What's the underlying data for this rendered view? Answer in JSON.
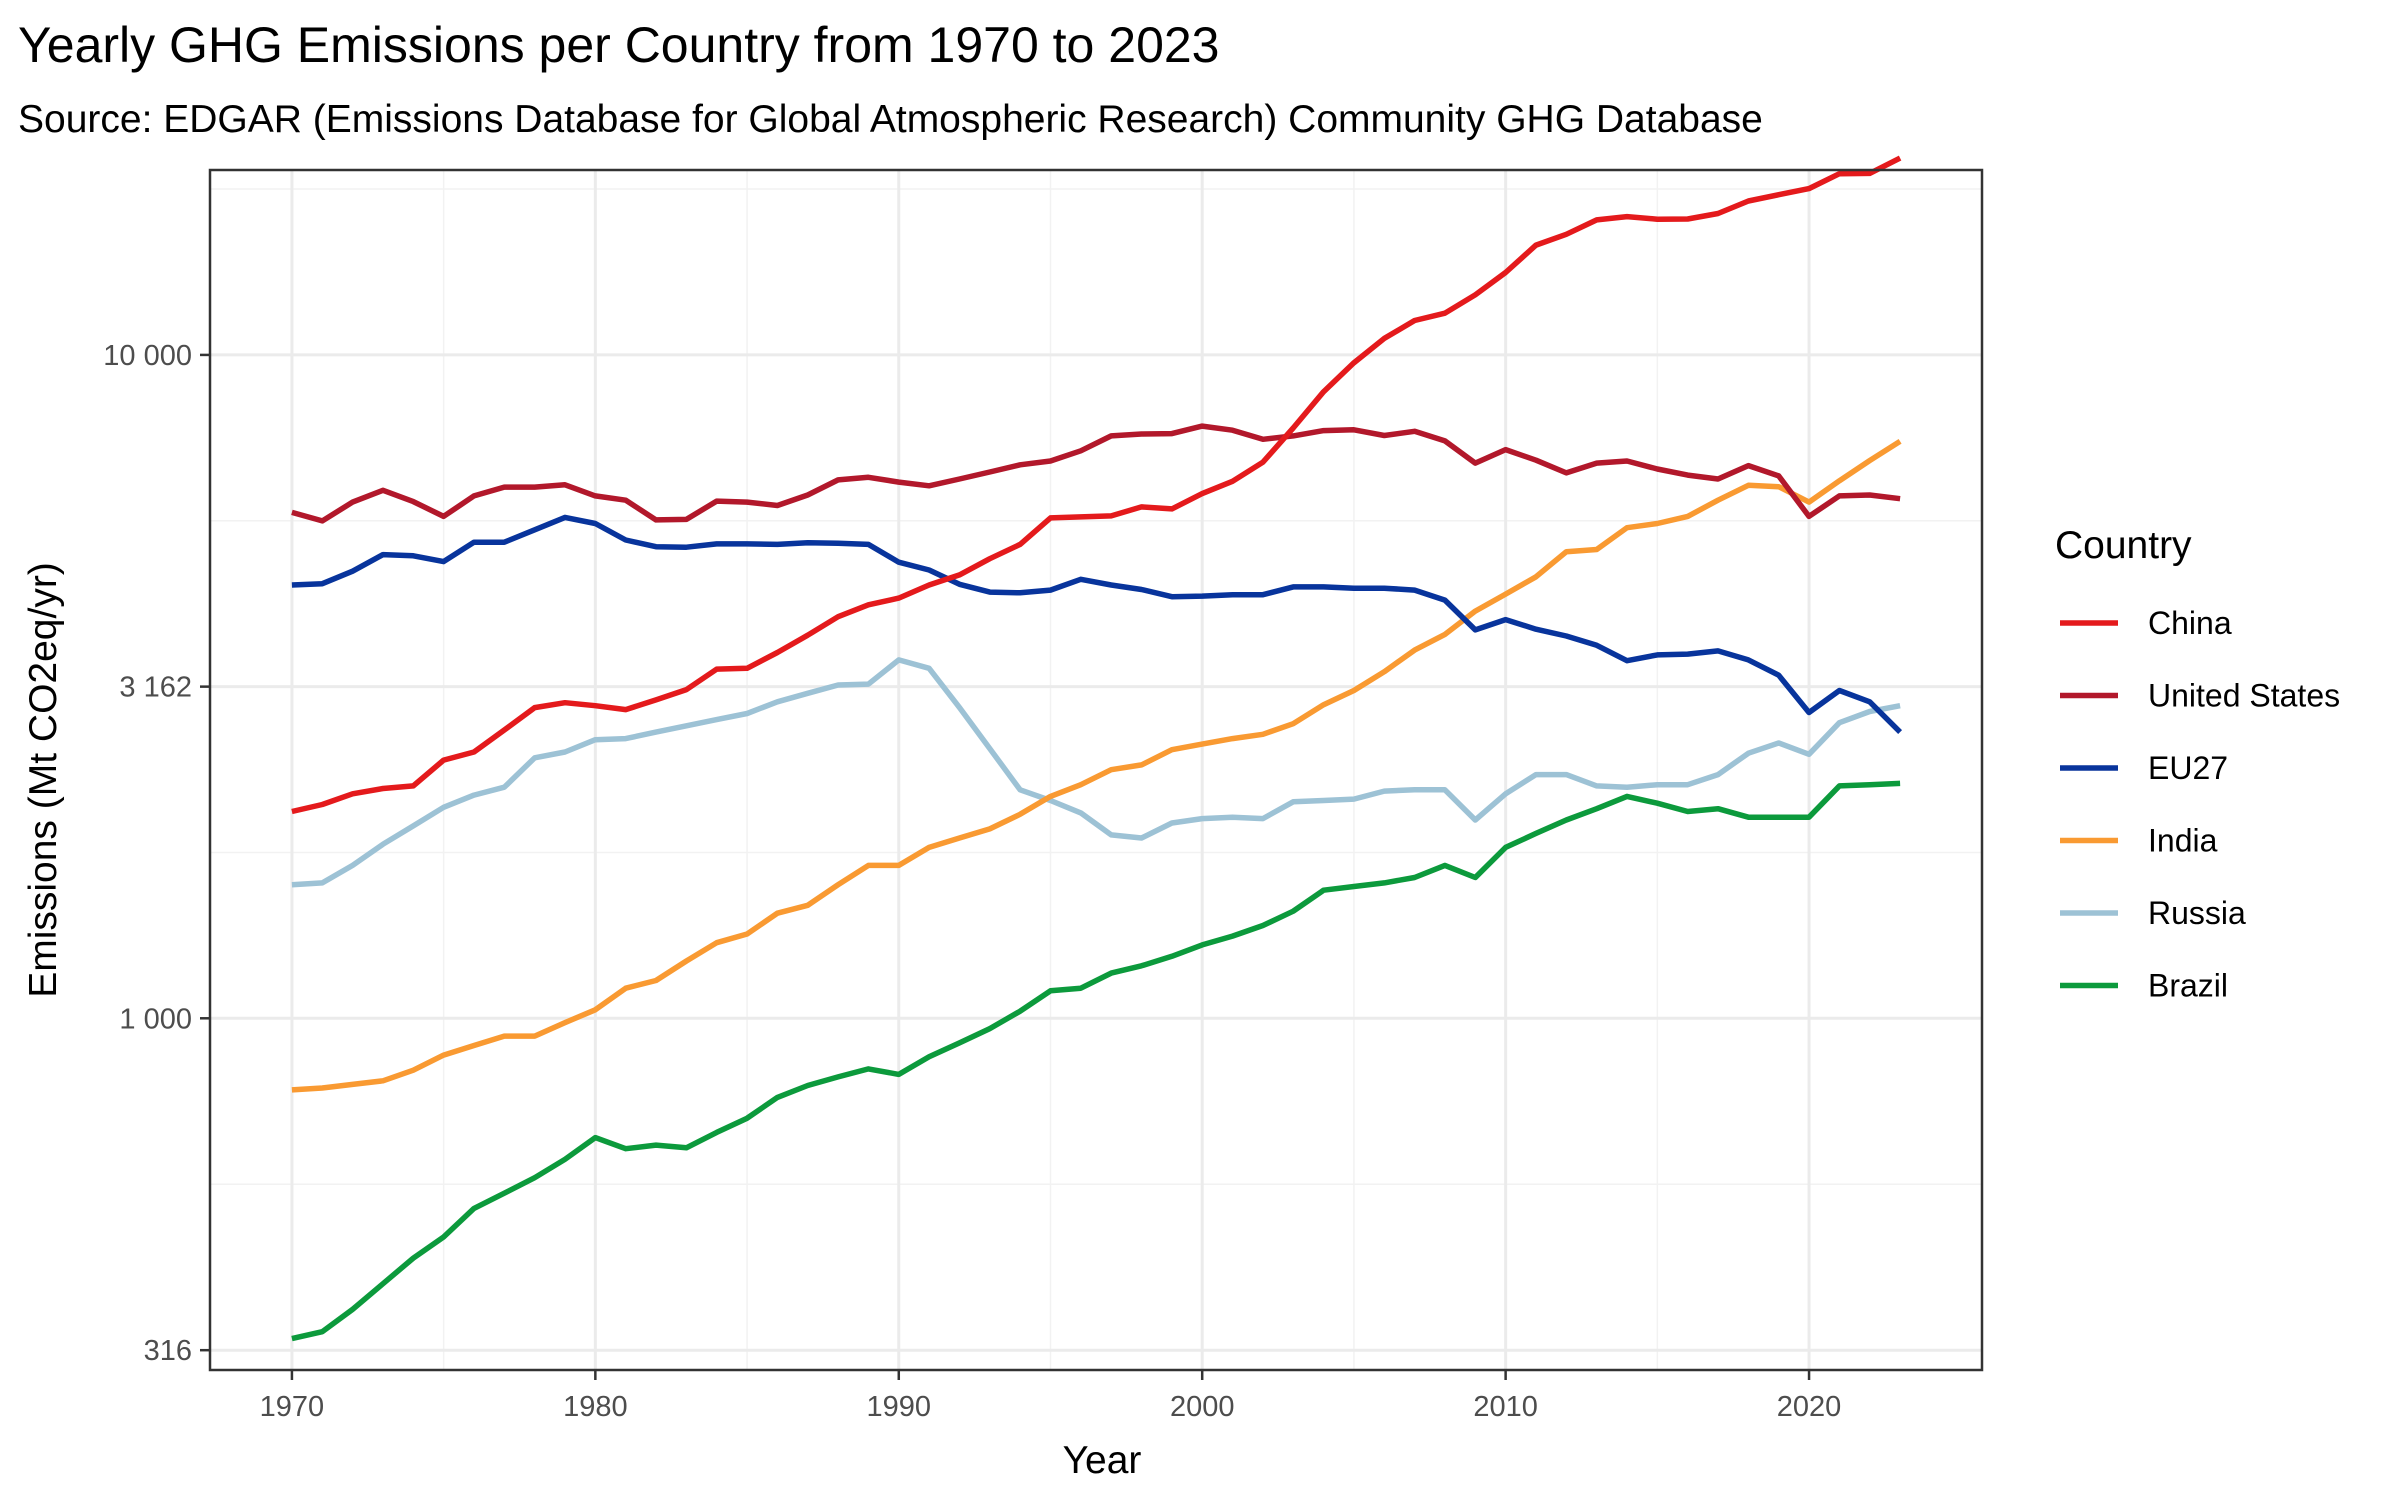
{
  "chart_data": {
    "type": "line",
    "title": "Yearly GHG Emissions per Country from 1970 to 2023",
    "subtitle": "Source: EDGAR (Emissions Database for Global Atmospheric Research) Community GHG Database",
    "xlabel": "Year",
    "ylabel": "Emissions (Mt CO2eq/yr)",
    "y_scale": "log10",
    "xlim": [
      1967.3,
      2025.7
    ],
    "ylim": [
      295,
      19000
    ],
    "x_ticks": [
      1970,
      1980,
      1990,
      2000,
      2010,
      2020
    ],
    "x_tick_labels": [
      "1970",
      "1980",
      "1990",
      "2000",
      "2010",
      "2020"
    ],
    "y_ticks": [
      316,
      1000,
      3162,
      10000
    ],
    "y_tick_labels": [
      "316",
      "1 000",
      "3 162",
      "10 000"
    ],
    "grid": true,
    "legend": {
      "title": "Country",
      "position": "right"
    },
    "x": [
      1970,
      1971,
      1972,
      1973,
      1974,
      1975,
      1976,
      1977,
      1978,
      1979,
      1980,
      1981,
      1982,
      1983,
      1984,
      1985,
      1986,
      1987,
      1988,
      1989,
      1990,
      1991,
      1992,
      1993,
      1994,
      1995,
      1996,
      1997,
      1998,
      1999,
      2000,
      2001,
      2002,
      2003,
      2004,
      2005,
      2006,
      2007,
      2008,
      2009,
      2010,
      2011,
      2012,
      2013,
      2014,
      2015,
      2016,
      2017,
      2018,
      2019,
      2020,
      2021,
      2022,
      2023
    ],
    "series": [
      {
        "name": "China",
        "color": "#e41a1c",
        "values": [
          2050,
          2100,
          2180,
          2220,
          2240,
          2450,
          2520,
          2720,
          2940,
          2990,
          2960,
          2920,
          3020,
          3130,
          3360,
          3370,
          3560,
          3780,
          4030,
          4200,
          4300,
          4500,
          4660,
          4930,
          5180,
          5680,
          5700,
          5720,
          5900,
          5860,
          6180,
          6450,
          6890,
          7760,
          8800,
          9730,
          10590,
          11270,
          11560,
          12320,
          13310,
          14640,
          15200,
          15980,
          16160,
          16020,
          16030,
          16340,
          17060,
          17440,
          17810,
          18760,
          18780,
          19800
        ]
      },
      {
        "name": "United States",
        "color": "#b2182b",
        "values": [
          5790,
          5620,
          6000,
          6250,
          6010,
          5710,
          6130,
          6320,
          6320,
          6370,
          6130,
          6040,
          5640,
          5650,
          6020,
          6000,
          5930,
          6150,
          6480,
          6540,
          6430,
          6350,
          6500,
          6660,
          6830,
          6920,
          7170,
          7550,
          7600,
          7610,
          7810,
          7700,
          7460,
          7550,
          7690,
          7710,
          7560,
          7670,
          7420,
          6870,
          7200,
          6940,
          6640,
          6870,
          6920,
          6730,
          6590,
          6500,
          6810,
          6570,
          5710,
          6130,
          6150,
          6070
        ]
      },
      {
        "name": "EU27",
        "color": "#08349c",
        "values": [
          4500,
          4520,
          4720,
          5000,
          4980,
          4880,
          5220,
          5220,
          5450,
          5690,
          5570,
          5260,
          5140,
          5130,
          5190,
          5190,
          5180,
          5210,
          5200,
          5180,
          4870,
          4740,
          4510,
          4390,
          4380,
          4420,
          4590,
          4500,
          4430,
          4320,
          4330,
          4350,
          4350,
          4470,
          4470,
          4450,
          4450,
          4420,
          4270,
          3850,
          3990,
          3860,
          3770,
          3650,
          3460,
          3530,
          3540,
          3580,
          3470,
          3290,
          2890,
          3120,
          3000,
          2700
        ]
      },
      {
        "name": "India",
        "color": "#f99a32",
        "values": [
          780,
          785,
          795,
          805,
          835,
          880,
          910,
          940,
          940,
          985,
          1030,
          1110,
          1140,
          1220,
          1300,
          1340,
          1440,
          1480,
          1590,
          1700,
          1700,
          1810,
          1870,
          1930,
          2030,
          2160,
          2250,
          2370,
          2410,
          2540,
          2590,
          2640,
          2680,
          2780,
          2970,
          3120,
          3330,
          3590,
          3790,
          4110,
          4360,
          4630,
          5050,
          5090,
          5490,
          5570,
          5710,
          6040,
          6360,
          6330,
          6000,
          6460,
          6930,
          7410
        ]
      },
      {
        "name": "Russia",
        "color": "#9dc2d5",
        "values": [
          1590,
          1600,
          1700,
          1830,
          1950,
          2080,
          2170,
          2230,
          2470,
          2520,
          2630,
          2640,
          2700,
          2760,
          2820,
          2880,
          3000,
          3090,
          3180,
          3190,
          3470,
          3370,
          2940,
          2550,
          2210,
          2130,
          2040,
          1890,
          1870,
          1970,
          2000,
          2010,
          2000,
          2120,
          2130,
          2140,
          2200,
          2210,
          2210,
          1990,
          2180,
          2330,
          2330,
          2240,
          2230,
          2250,
          2250,
          2330,
          2510,
          2600,
          2500,
          2790,
          2900,
          2960
        ]
      },
      {
        "name": "Brazil",
        "color": "#0c9a3c",
        "values": [
          329,
          337,
          364,
          398,
          435,
          468,
          517,
          545,
          575,
          613,
          661,
          636,
          644,
          638,
          673,
          707,
          760,
          792,
          816,
          839,
          823,
          875,
          918,
          965,
          1025,
          1100,
          1110,
          1170,
          1200,
          1240,
          1290,
          1330,
          1380,
          1450,
          1560,
          1580,
          1600,
          1630,
          1700,
          1630,
          1810,
          1900,
          1990,
          2070,
          2160,
          2110,
          2050,
          2070,
          2010,
          2010,
          2010,
          2240,
          2250,
          2260
        ]
      }
    ]
  }
}
